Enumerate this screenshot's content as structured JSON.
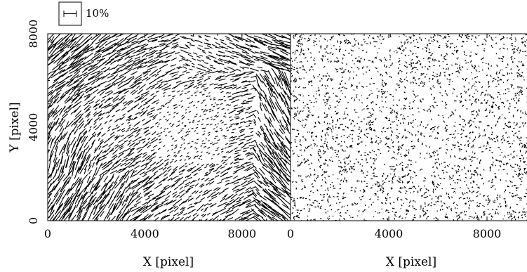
{
  "chart_data": [
    {
      "type": "scatter",
      "panel": "left",
      "description_of_marks": "short whisker sticks (vector field); length encodes percent, orientation encodes angle",
      "xlabel": "X [pixel]",
      "ylabel": "Y [pixel]",
      "xlim": [
        0,
        10000
      ],
      "ylim": [
        0,
        8000
      ],
      "xticks": [
        "0",
        "4000",
        "8000"
      ],
      "yticks": [
        "0",
        "4000",
        "8000"
      ],
      "scale_bar": {
        "value": 10,
        "label": "10%"
      },
      "grid": false
    },
    {
      "type": "scatter",
      "panel": "right",
      "description_of_marks": "residual whiskers, very short, nearly point-like",
      "xlabel": "X [pixel]",
      "xlim": [
        0,
        10000
      ],
      "ylim": [
        0,
        8000
      ],
      "xticks": [
        "0",
        "4000",
        "8000"
      ],
      "grid": false
    }
  ],
  "colors": {
    "ink": "#000000",
    "background": "#ffffff"
  }
}
